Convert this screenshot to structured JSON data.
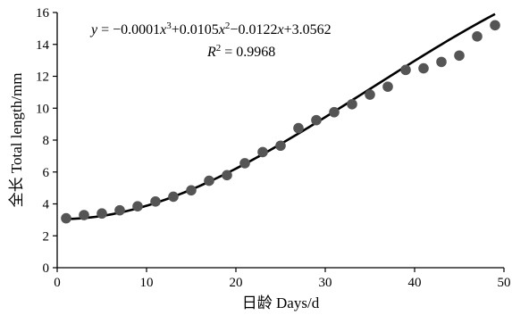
{
  "chart_data": {
    "type": "scatter",
    "xlabel": "日龄 Days/d",
    "ylabel": "全长 Total length/mm",
    "xlim": [
      0,
      50
    ],
    "ylim": [
      0,
      16
    ],
    "xticks": [
      0,
      10,
      20,
      30,
      40,
      50
    ],
    "yticks": [
      0,
      2,
      4,
      6,
      8,
      10,
      12,
      14,
      16
    ],
    "grid": false,
    "point_color": "#555555",
    "line_color": "#000000",
    "series": [
      {
        "type": "scatter",
        "x": [
          1,
          3,
          5,
          7,
          9,
          11,
          13,
          15,
          17,
          19,
          21,
          23,
          25,
          27,
          29,
          31,
          33,
          35,
          37,
          39,
          41,
          43,
          45,
          47,
          49
        ],
        "y": [
          3.1,
          3.3,
          3.4,
          3.6,
          3.85,
          4.15,
          4.45,
          4.85,
          5.45,
          5.8,
          6.55,
          7.25,
          7.65,
          8.75,
          9.25,
          9.75,
          10.25,
          10.85,
          11.35,
          12.4,
          12.5,
          12.9,
          13.3,
          14.5,
          15.2
        ]
      },
      {
        "type": "line",
        "fit": "cubic",
        "coefficients": {
          "a": -0.0001,
          "b": 0.0105,
          "c": -0.0122,
          "d": 3.0562
        },
        "x_range": [
          1,
          49
        ]
      }
    ],
    "annotations": {
      "eq_y": "y",
      "eq_equals": " = ",
      "eq_t1": "−0.0001",
      "eq_x1": "x",
      "eq_e1": "3",
      "eq_t2": "+0.0105",
      "eq_x2": "x",
      "eq_e2": "2",
      "eq_t3": "−0.0122",
      "eq_x3": "x",
      "eq_t4": "+3.0562",
      "r2_R": "R",
      "r2_sup": "2",
      "r2_value": " = 0.9968"
    }
  }
}
